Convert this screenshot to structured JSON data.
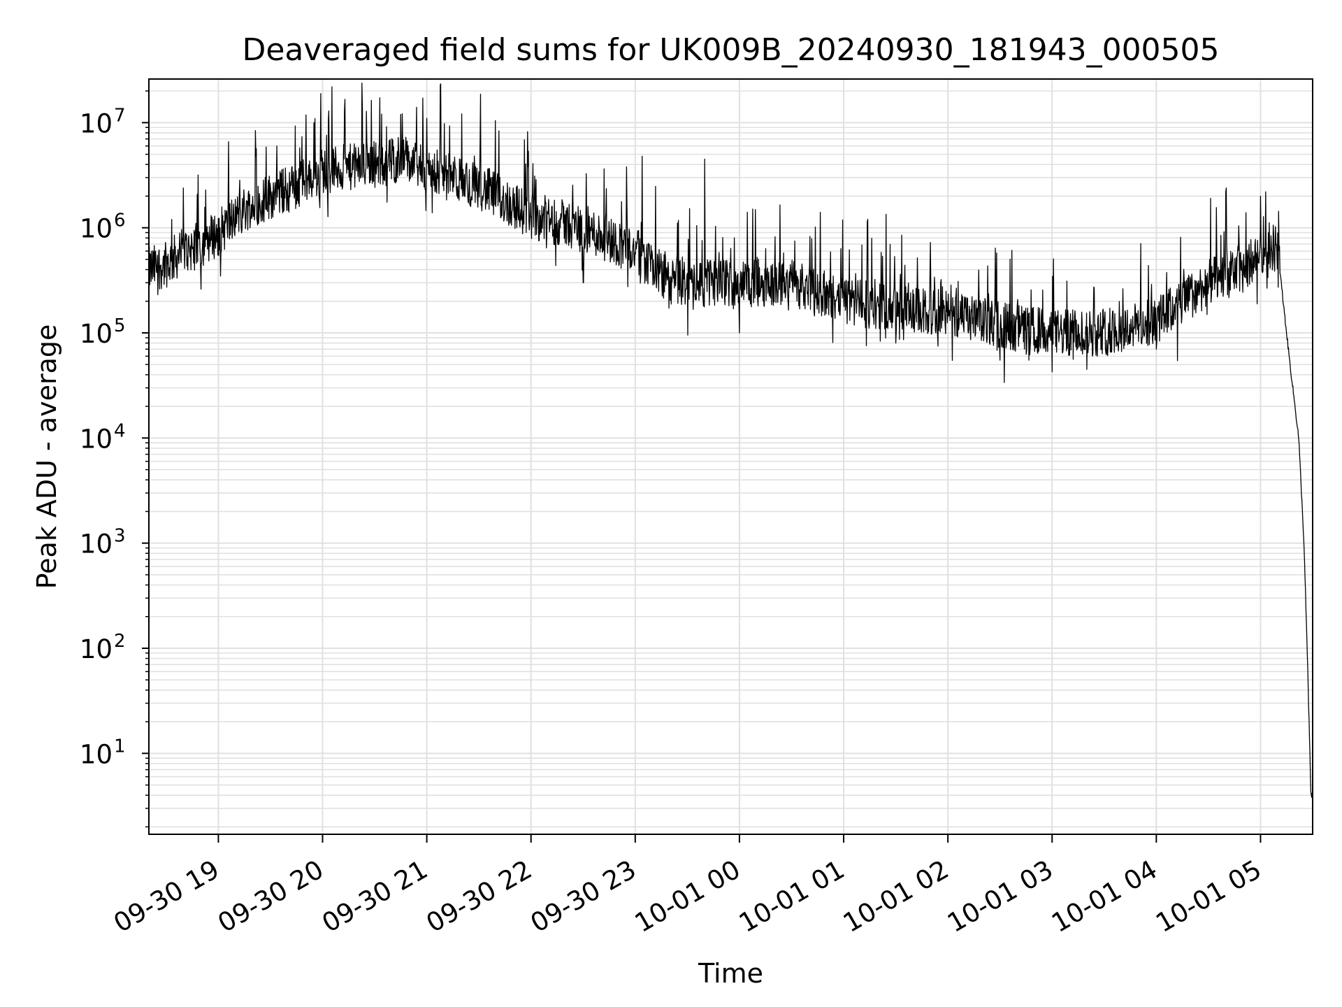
{
  "chart_data": {
    "type": "line",
    "title": "Deaveraged field sums for UK009B_20240930_181943_000505",
    "xlabel": "Time",
    "ylabel": "Peak ADU - average",
    "yscale": "log",
    "ylim": [
      1.7,
      26000000
    ],
    "xlim": [
      "2024-09-30 18:20",
      "2024-10-01 05:30"
    ],
    "grid": "on, major and minor",
    "line_color": "#000000",
    "grid_color": "#e0e0e0",
    "x_ticks": [
      {
        "time": "2024-09-30 19:00",
        "label": "09-30 19"
      },
      {
        "time": "2024-09-30 20:00",
        "label": "09-30 20"
      },
      {
        "time": "2024-09-30 21:00",
        "label": "09-30 21"
      },
      {
        "time": "2024-09-30 22:00",
        "label": "09-30 22"
      },
      {
        "time": "2024-09-30 23:00",
        "label": "09-30 23"
      },
      {
        "time": "2024-10-01 00:00",
        "label": "10-01 00"
      },
      {
        "time": "2024-10-01 01:00",
        "label": "10-01 01"
      },
      {
        "time": "2024-10-01 02:00",
        "label": "10-01 02"
      },
      {
        "time": "2024-10-01 03:00",
        "label": "10-01 03"
      },
      {
        "time": "2024-10-01 04:00",
        "label": "10-01 04"
      },
      {
        "time": "2024-10-01 05:00",
        "label": "10-01 05"
      }
    ],
    "y_ticks": [
      {
        "value": 10,
        "base": "10",
        "exp": "1"
      },
      {
        "value": 100,
        "base": "10",
        "exp": "2"
      },
      {
        "value": 1000,
        "base": "10",
        "exp": "3"
      },
      {
        "value": 10000,
        "base": "10",
        "exp": "4"
      },
      {
        "value": 100000,
        "base": "10",
        "exp": "5"
      },
      {
        "value": 1000000,
        "base": "10",
        "exp": "6"
      },
      {
        "value": 10000000,
        "base": "10",
        "exp": "7"
      }
    ],
    "series": [
      {
        "trend": [
          {
            "time": "2024-09-30 18:20",
            "value": 400000
          },
          {
            "time": "2024-09-30 18:30",
            "value": 450000
          },
          {
            "time": "2024-09-30 18:40",
            "value": 600000
          },
          {
            "time": "2024-09-30 18:50",
            "value": 700000
          },
          {
            "time": "2024-09-30 19:00",
            "value": 900000
          },
          {
            "time": "2024-09-30 19:15",
            "value": 1500000
          },
          {
            "time": "2024-09-30 19:30",
            "value": 2000000
          },
          {
            "time": "2024-09-30 19:45",
            "value": 2500000
          },
          {
            "time": "2024-09-30 20:00",
            "value": 3500000
          },
          {
            "time": "2024-09-30 20:30",
            "value": 4000000
          },
          {
            "time": "2024-09-30 20:45",
            "value": 4500000
          },
          {
            "time": "2024-09-30 21:00",
            "value": 3500000
          },
          {
            "time": "2024-09-30 21:30",
            "value": 2500000
          },
          {
            "time": "2024-09-30 22:00",
            "value": 1300000
          },
          {
            "time": "2024-09-30 22:30",
            "value": 1000000
          },
          {
            "time": "2024-09-30 23:00",
            "value": 600000
          },
          {
            "time": "2024-09-30 23:20",
            "value": 300000
          },
          {
            "time": "2024-10-01 00:00",
            "value": 300000
          },
          {
            "time": "2024-10-01 00:30",
            "value": 300000
          },
          {
            "time": "2024-10-01 01:00",
            "value": 200000
          },
          {
            "time": "2024-10-01 01:30",
            "value": 170000
          },
          {
            "time": "2024-10-01 02:00",
            "value": 150000
          },
          {
            "time": "2024-10-01 02:30",
            "value": 120000
          },
          {
            "time": "2024-10-01 03:00",
            "value": 100000
          },
          {
            "time": "2024-10-01 03:30",
            "value": 100000
          },
          {
            "time": "2024-10-01 04:00",
            "value": 130000
          },
          {
            "time": "2024-10-01 04:30",
            "value": 300000
          },
          {
            "time": "2024-10-01 04:50",
            "value": 400000
          },
          {
            "time": "2024-10-01 05:05",
            "value": 700000
          },
          {
            "time": "2024-10-01 05:10",
            "value": 600000
          },
          {
            "time": "2024-10-01 05:13",
            "value": 200000
          },
          {
            "time": "2024-10-01 05:17",
            "value": 50000
          },
          {
            "time": "2024-10-01 05:22",
            "value": 10000
          },
          {
            "time": "2024-10-01 05:25",
            "value": 1000
          },
          {
            "time": "2024-10-01 05:27",
            "value": 80
          },
          {
            "time": "2024-10-01 05:29",
            "value": 4
          }
        ],
        "peaks": [
          {
            "time": "2024-09-30 19:55",
            "value": 10000000
          },
          {
            "time": "2024-09-30 20:45",
            "value": 12000000
          },
          {
            "time": "2024-09-30 21:00",
            "value": 11000000
          },
          {
            "time": "2024-09-30 22:55",
            "value": 3800000
          },
          {
            "time": "2024-09-30 23:40",
            "value": 4500000
          },
          {
            "time": "2024-10-01 04:40",
            "value": 2200000
          },
          {
            "time": "2024-10-01 05:00",
            "value": 2000000
          }
        ],
        "troughs": [
          {
            "time": "2024-09-30 18:50",
            "value": 260000
          },
          {
            "time": "2024-09-30 22:30",
            "value": 300000
          },
          {
            "time": "2024-10-01 00:00",
            "value": 100000
          },
          {
            "time": "2024-10-01 01:30",
            "value": 80000
          },
          {
            "time": "2024-10-01 02:30",
            "value": 55000
          },
          {
            "time": "2024-10-01 03:20",
            "value": 45000
          },
          {
            "time": "2024-10-01 04:00",
            "value": 70000
          }
        ]
      }
    ]
  }
}
